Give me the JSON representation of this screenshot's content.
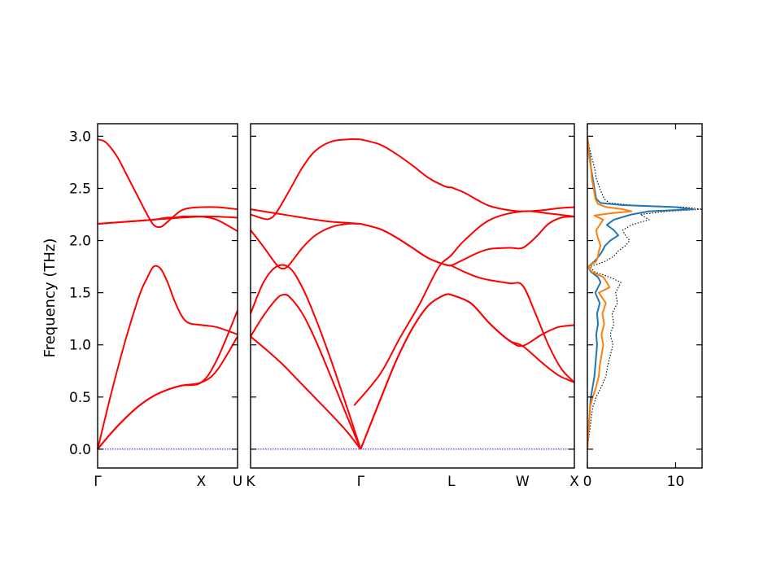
{
  "chart_data": {
    "type": "line",
    "ylabel": "Frequency (THz)",
    "ylim": [
      -0.18,
      3.12
    ],
    "yticks": [
      0.0,
      0.5,
      1.0,
      1.5,
      2.0,
      2.5,
      3.0
    ],
    "ytick_labels": [
      "0.0",
      "0.5",
      "1.0",
      "1.5",
      "2.0",
      "2.5",
      "3.0"
    ],
    "colors": {
      "bands": "#ff0000",
      "zero_line": "#0000ff",
      "dos_total": "#000000",
      "dos_1": "#1f77b4",
      "dos_2": "#ff7f0e"
    },
    "band_panels": [
      {
        "id": "gamma-x-u",
        "xlim": [
          0,
          1.0
        ],
        "ticks": [
          {
            "x": 0,
            "label": "Γ"
          },
          {
            "x": 0.74,
            "label": "X"
          },
          {
            "x": 1.0,
            "label": "U"
          }
        ],
        "bands": [
          {
            "x": [
              0,
              0.1,
              0.2,
              0.3,
              0.4,
              0.5,
              0.6,
              0.74,
              0.85,
              1.0
            ],
            "y": [
              0,
              0.16,
              0.3,
              0.42,
              0.51,
              0.57,
              0.61,
              0.64,
              0.85,
              1.33
            ]
          },
          {
            "x": [
              0,
              0.1,
              0.2,
              0.3,
              0.4,
              0.5,
              0.6,
              0.74,
              0.85,
              1.0
            ],
            "y": [
              0,
              0.16,
              0.3,
              0.42,
              0.51,
              0.57,
              0.61,
              0.64,
              0.75,
              1.08
            ]
          },
          {
            "x": [
              0,
              0.1,
              0.2,
              0.3,
              0.35,
              0.4,
              0.45,
              0.5,
              0.55,
              0.6,
              0.65,
              0.74,
              0.85,
              1.0
            ],
            "y": [
              0,
              0.55,
              1.05,
              1.48,
              1.63,
              1.75,
              1.73,
              1.6,
              1.42,
              1.28,
              1.21,
              1.19,
              1.17,
              1.1
            ]
          },
          {
            "x": [
              0,
              0.1,
              0.2,
              0.3,
              0.4,
              0.5,
              0.6,
              0.74,
              0.85,
              1.0
            ],
            "y": [
              2.16,
              2.17,
              2.18,
              2.19,
              2.2,
              2.21,
              2.22,
              2.23,
              2.23,
              2.22
            ]
          },
          {
            "x": [
              0,
              0.1,
              0.2,
              0.3,
              0.4,
              0.45,
              0.5,
              0.55,
              0.6,
              0.65,
              0.74,
              0.85,
              1.0
            ],
            "y": [
              2.16,
              2.17,
              2.18,
              2.19,
              2.2,
              2.21,
              2.22,
              2.22,
              2.23,
              2.23,
              2.23,
              2.2,
              2.09
            ]
          },
          {
            "x": [
              0,
              0.05,
              0.1,
              0.15,
              0.2,
              0.25,
              0.3,
              0.35,
              0.4,
              0.45,
              0.5,
              0.55,
              0.6,
              0.65,
              0.74,
              0.85,
              1.0
            ],
            "y": [
              2.97,
              2.95,
              2.88,
              2.78,
              2.65,
              2.52,
              2.39,
              2.26,
              2.15,
              2.13,
              2.18,
              2.24,
              2.29,
              2.31,
              2.32,
              2.32,
              2.3
            ]
          }
        ]
      },
      {
        "id": "k-gamma-l-w-x",
        "xlim": [
          0,
          1.0
        ],
        "ticks": [
          {
            "x": 0,
            "label": "K"
          },
          {
            "x": 0.34,
            "label": "Γ"
          },
          {
            "x": 0.62,
            "label": "L"
          },
          {
            "x": 0.84,
            "label": "W"
          },
          {
            "x": 1.0,
            "label": "X"
          }
        ],
        "bands": [
          {
            "x": [
              0,
              0.05,
              0.1,
              0.15,
              0.2,
              0.25,
              0.3,
              0.34
            ],
            "y": [
              1.08,
              0.95,
              0.81,
              0.65,
              0.49,
              0.33,
              0.16,
              0
            ]
          },
          {
            "x": [
              0,
              0.04,
              0.08,
              0.1,
              0.12,
              0.16,
              0.2,
              0.25,
              0.3,
              0.34
            ],
            "y": [
              1.08,
              1.28,
              1.44,
              1.48,
              1.46,
              1.3,
              1.05,
              0.68,
              0.3,
              0
            ]
          },
          {
            "x": [
              0,
              0.04,
              0.08,
              0.12,
              0.16,
              0.2,
              0.25,
              0.3,
              0.34
            ],
            "y": [
              1.3,
              1.6,
              1.75,
              1.74,
              1.55,
              1.26,
              0.84,
              0.38,
              0
            ]
          },
          {
            "x": [
              0,
              0.04,
              0.08,
              0.1,
              0.12,
              0.16,
              0.2,
              0.25,
              0.3,
              0.34
            ],
            "y": [
              2.1,
              1.94,
              1.77,
              1.73,
              1.77,
              1.93,
              2.05,
              2.13,
              2.16,
              2.16
            ]
          },
          {
            "x": [
              0,
              0.04,
              0.08,
              0.12,
              0.16,
              0.2,
              0.25,
              0.3,
              0.34
            ],
            "y": [
              2.3,
              2.28,
              2.26,
              2.24,
              2.22,
              2.2,
              2.18,
              2.17,
              2.16
            ]
          },
          {
            "x": [
              0,
              0.04,
              0.06,
              0.08,
              0.12,
              0.16,
              0.2,
              0.25,
              0.3,
              0.34
            ],
            "y": [
              2.25,
              2.21,
              2.21,
              2.27,
              2.48,
              2.7,
              2.86,
              2.95,
              2.97,
              2.97
            ]
          },
          {
            "x": [
              0.34,
              0.4,
              0.45,
              0.5,
              0.55,
              0.6,
              0.62
            ],
            "y": [
              0,
              0.47,
              0.85,
              1.16,
              1.38,
              1.48,
              1.48
            ]
          },
          {
            "x": [
              0.34,
              0.4,
              0.45,
              0.5,
              0.55,
              0.6,
              0.62
            ],
            "y": [
              0,
              0.47,
              0.85,
              1.16,
              1.38,
              1.48,
              1.48
            ]
          },
          {
            "x": [
              0.34,
              0.4,
              0.45,
              0.5,
              0.55,
              0.6,
              0.62
            ],
            "y": [
              2.16,
              2.11,
              2.03,
              1.93,
              1.83,
              1.77,
              1.76
            ]
          },
          {
            "x": [
              0.34,
              0.4,
              0.45,
              0.5,
              0.55,
              0.6,
              0.62
            ],
            "y": [
              2.16,
              2.11,
              2.03,
              1.93,
              1.83,
              1.77,
              1.76
            ]
          },
          {
            "x": [
              0.34,
              0.4,
              0.45,
              0.5,
              0.55,
              0.6,
              0.62
            ],
            "y": [
              2.97,
              2.92,
              2.83,
              2.72,
              2.6,
              2.52,
              2.51
            ]
          },
          {
            "x": [
              0.62,
              0.68,
              0.74,
              0.8,
              0.84,
              0.9,
              0.95,
              1.0
            ],
            "y": [
              1.48,
              1.4,
              1.2,
              1.04,
              0.99,
              0.83,
              0.71,
              0.64
            ]
          },
          {
            "x": [
              0.62,
              0.68,
              0.74,
              0.8,
              0.84,
              0.9,
              0.95,
              1.0
            ],
            "y": [
              1.48,
              1.4,
              1.2,
              1.04,
              0.99,
              1.1,
              1.17,
              1.19
            ]
          },
          {
            "x": [
              0.62,
              0.66,
              0.7,
              0.74,
              0.8,
              0.84,
              0.88,
              0.92,
              0.96,
              1.0
            ],
            "y": [
              1.76,
              1.7,
              1.65,
              1.62,
              1.59,
              1.57,
              1.3,
              1.0,
              0.77,
              0.64
            ]
          },
          {
            "x": [
              0.62,
              0.66,
              0.7,
              0.74,
              0.8,
              0.84,
              0.88,
              0.92,
              0.96,
              1.0
            ],
            "y": [
              1.76,
              1.82,
              1.88,
              1.92,
              1.93,
              1.93,
              2.03,
              2.16,
              2.22,
              2.23
            ]
          },
          {
            "x": [
              0.32,
              0.4,
              0.46,
              0.52,
              0.58,
              0.62,
              0.66,
              0.74,
              0.84,
              0.92,
              1.0
            ],
            "y": [
              0.42,
              0.72,
              1.06,
              1.38,
              1.74,
              1.86,
              2.0,
              2.2,
              2.28,
              2.26,
              2.23
            ]
          },
          {
            "x": [
              0.62,
              0.66,
              0.7,
              0.74,
              0.8,
              0.84,
              0.9,
              0.95,
              1.0
            ],
            "y": [
              2.51,
              2.46,
              2.39,
              2.33,
              2.29,
              2.28,
              2.29,
              2.31,
              2.32
            ]
          }
        ]
      }
    ],
    "dos_panel": {
      "xlim": [
        0,
        13
      ],
      "xticks": [
        0,
        10
      ],
      "xtick_labels": [
        "0",
        "10"
      ],
      "series": [
        {
          "style": "dotted",
          "color": "#000000",
          "y": [
            0.0,
            0.2,
            0.4,
            0.5,
            0.6,
            0.7,
            0.8,
            0.9,
            1.0,
            1.1,
            1.2,
            1.3,
            1.4,
            1.5,
            1.55,
            1.6,
            1.65,
            1.7,
            1.75,
            1.8,
            1.85,
            1.9,
            1.95,
            2.0,
            2.05,
            2.1,
            2.15,
            2.2,
            2.25,
            2.28,
            2.3,
            2.32,
            2.34,
            2.36,
            2.4,
            2.5,
            2.6,
            2.7,
            2.8,
            2.9,
            3.0
          ],
          "x": [
            0,
            0.3,
            0.6,
            1.0,
            1.6,
            2.1,
            2.3,
            2.6,
            2.9,
            2.6,
            3.0,
            2.8,
            3.4,
            3.2,
            3.5,
            3.8,
            2.5,
            0.8,
            0.3,
            2.0,
            3.0,
            3.5,
            4.3,
            4.8,
            4.3,
            4.0,
            5.0,
            7.0,
            6.0,
            9.0,
            13.0,
            11.0,
            5.0,
            2.5,
            1.9,
            1.4,
            1.0,
            0.8,
            0.5,
            0.2,
            0
          ]
        },
        {
          "style": "solid",
          "color": "#1f77b4",
          "y": [
            0.0,
            0.2,
            0.4,
            0.5,
            0.6,
            0.7,
            0.8,
            0.9,
            1.0,
            1.1,
            1.2,
            1.3,
            1.4,
            1.5,
            1.6,
            1.65,
            1.7,
            1.75,
            1.8,
            1.85,
            1.9,
            1.95,
            2.0,
            2.05,
            2.1,
            2.15,
            2.2,
            2.25,
            2.28,
            2.3,
            2.32,
            2.34,
            2.36,
            2.4,
            2.5,
            2.6,
            2.7,
            2.8,
            2.9,
            3.0
          ],
          "x": [
            0,
            0.15,
            0.3,
            0.4,
            0.6,
            0.8,
            0.9,
            1.0,
            1.1,
            1.0,
            1.2,
            1.1,
            1.4,
            0.9,
            1.5,
            1.2,
            0.4,
            0.1,
            0.8,
            1.3,
            1.7,
            2.0,
            2.6,
            3.5,
            3.0,
            2.2,
            3.0,
            5.0,
            7.0,
            12.0,
            10.0,
            4.0,
            1.5,
            1.0,
            0.8,
            0.6,
            0.4,
            0.3,
            0.1,
            0
          ]
        },
        {
          "style": "solid",
          "color": "#ff7f0e",
          "y": [
            0.0,
            0.2,
            0.4,
            0.5,
            0.6,
            0.7,
            0.8,
            0.9,
            1.0,
            1.1,
            1.2,
            1.3,
            1.4,
            1.5,
            1.55,
            1.6,
            1.65,
            1.7,
            1.75,
            1.8,
            1.85,
            1.9,
            1.95,
            2.0,
            2.05,
            2.1,
            2.15,
            2.2,
            2.24,
            2.26,
            2.28,
            2.3,
            2.32,
            2.35,
            2.4,
            2.5,
            2.6,
            2.7,
            2.8,
            2.9,
            3.0
          ],
          "x": [
            0,
            0.15,
            0.3,
            0.6,
            1.0,
            1.3,
            1.4,
            1.6,
            1.8,
            1.6,
            1.9,
            1.7,
            2.1,
            1.3,
            2.5,
            2.2,
            1.8,
            0.5,
            0.1,
            1.0,
            1.2,
            1.3,
            1.5,
            1.3,
            1.1,
            1.0,
            1.4,
            1.8,
            0.8,
            2.5,
            5.0,
            4.0,
            2.2,
            1.2,
            0.9,
            0.7,
            0.5,
            0.4,
            0.2,
            0.1,
            0
          ]
        }
      ]
    }
  }
}
